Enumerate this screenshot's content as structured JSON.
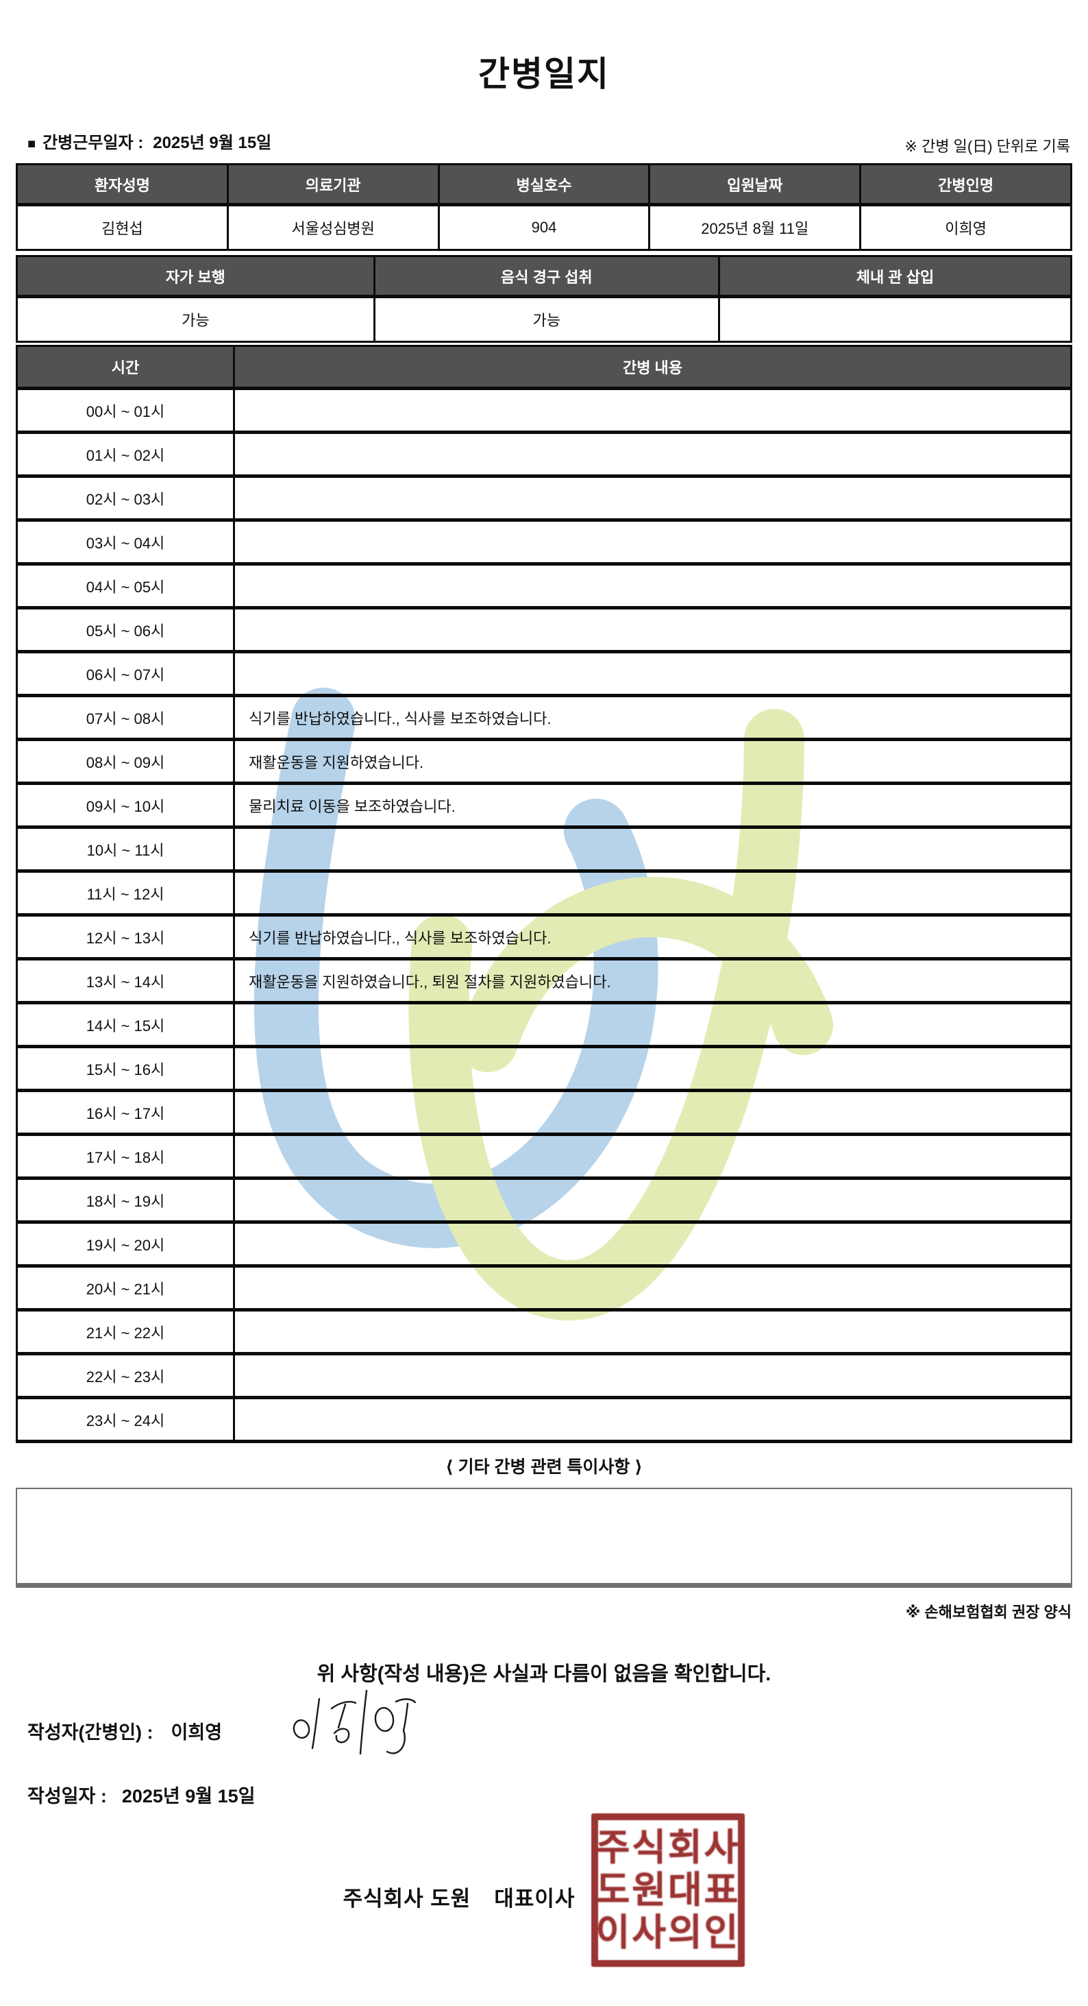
{
  "title": "간병일지",
  "work_date": {
    "bullet": "■",
    "label": "간병근무일자  :",
    "value": "2025년 9월 15일"
  },
  "top_note": "※ 간병 일(日) 단위로 기록",
  "info_table": {
    "headers": [
      "환자성명",
      "의료기관",
      "병실호수",
      "입원날짜",
      "간병인명"
    ],
    "values": [
      "김현섭",
      "서울성심병원",
      "904",
      "2025년 8월 11일",
      "이희영"
    ]
  },
  "status_table": {
    "headers": [
      "자가 보행",
      "음식 경구 섭취",
      "체내 관 삽입"
    ],
    "values": [
      "가능",
      "가능",
      ""
    ]
  },
  "log_table": {
    "time_header": "시간",
    "content_header": "간병 내용",
    "rows": [
      {
        "time": "00시 ~ 01시",
        "content": ""
      },
      {
        "time": "01시 ~ 02시",
        "content": ""
      },
      {
        "time": "02시 ~ 03시",
        "content": ""
      },
      {
        "time": "03시 ~ 04시",
        "content": ""
      },
      {
        "time": "04시 ~ 05시",
        "content": ""
      },
      {
        "time": "05시 ~ 06시",
        "content": ""
      },
      {
        "time": "06시 ~ 07시",
        "content": ""
      },
      {
        "time": "07시 ~ 08시",
        "content": "식기를 반납하였습니다., 식사를 보조하였습니다."
      },
      {
        "time": "08시 ~ 09시",
        "content": "재활운동을 지원하였습니다."
      },
      {
        "time": "09시 ~ 10시",
        "content": "물리치료 이동을 보조하였습니다."
      },
      {
        "time": "10시 ~ 11시",
        "content": ""
      },
      {
        "time": "11시 ~ 12시",
        "content": ""
      },
      {
        "time": "12시 ~ 13시",
        "content": "식기를 반납하였습니다., 식사를 보조하였습니다."
      },
      {
        "time": "13시 ~ 14시",
        "content": "재활운동을 지원하였습니다., 퇴원 절차를 지원하였습니다."
      },
      {
        "time": "14시 ~ 15시",
        "content": ""
      },
      {
        "time": "15시 ~ 16시",
        "content": ""
      },
      {
        "time": "16시 ~ 17시",
        "content": ""
      },
      {
        "time": "17시 ~ 18시",
        "content": ""
      },
      {
        "time": "18시 ~ 19시",
        "content": ""
      },
      {
        "time": "19시 ~ 20시",
        "content": ""
      },
      {
        "time": "20시 ~ 21시",
        "content": ""
      },
      {
        "time": "21시 ~ 22시",
        "content": ""
      },
      {
        "time": "22시 ~ 23시",
        "content": ""
      },
      {
        "time": "23시 ~ 24시",
        "content": ""
      }
    ]
  },
  "notes_section": {
    "title": "⟨ 기타 간병 관련 특이사항 ⟩",
    "content": ""
  },
  "form_note": "※ 손해보험협회 권장 양식",
  "confirmation": "위 사항(작성 내용)은 사실과 다름이 없음을 확인합니다.",
  "writer": {
    "label": "작성자(간병인) :",
    "name": "이희영"
  },
  "written_date": {
    "label": "작성일자 :",
    "value": "2025년 9월 15일"
  },
  "company": {
    "name": "주식회사 도원",
    "role": "대표이사"
  },
  "stamp": {
    "lines": [
      "주식회사",
      "도원대표",
      "이사의인"
    ],
    "color": "#9c3434"
  },
  "watermark_colors": {
    "blue": "#b7d3ea",
    "green": "#e2ebb4"
  }
}
